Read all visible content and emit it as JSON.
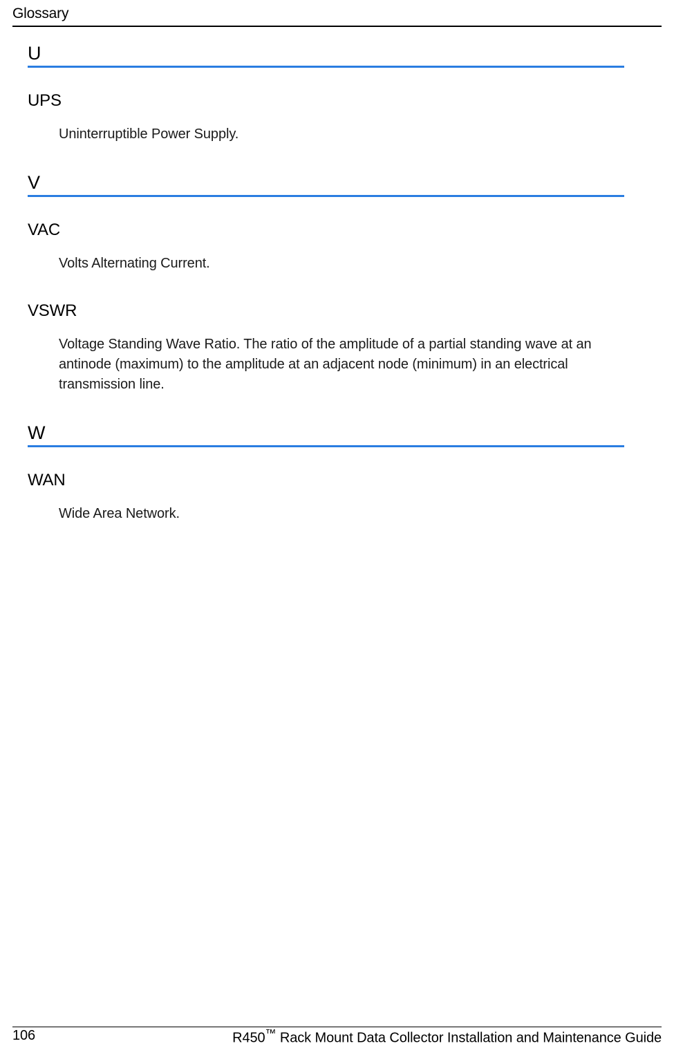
{
  "header": {
    "running_title": "Glossary"
  },
  "accent": {
    "rule_color": "#2a7de1"
  },
  "sections": [
    {
      "letter": "U",
      "entries": [
        {
          "term": "UPS",
          "definition": "Uninterruptible Power Supply."
        }
      ]
    },
    {
      "letter": "V",
      "entries": [
        {
          "term": "VAC",
          "definition": "Volts Alternating Current."
        },
        {
          "term": "VSWR",
          "definition": "Voltage Standing Wave Ratio. The ratio of the amplitude of a partial standing wave at an antinode (maximum) to the amplitude at an adjacent node (minimum) in an electrical transmission line."
        }
      ]
    },
    {
      "letter": "W",
      "entries": [
        {
          "term": "WAN",
          "definition": "Wide Area Network."
        }
      ]
    }
  ],
  "footer": {
    "page_number": "106",
    "doc_title_prefix": "R450",
    "doc_title_tm": "™",
    "doc_title_suffix": " Rack Mount Data Collector Installation and Maintenance Guide"
  }
}
